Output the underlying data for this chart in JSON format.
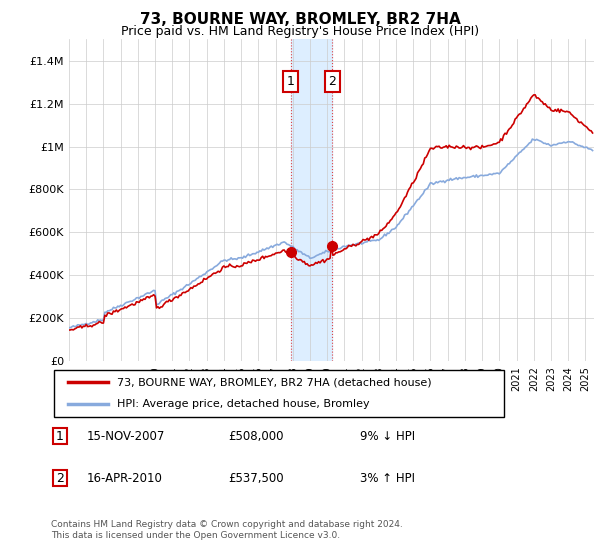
{
  "title": "73, BOURNE WAY, BROMLEY, BR2 7HA",
  "subtitle": "Price paid vs. HM Land Registry's House Price Index (HPI)",
  "legend_line1": "73, BOURNE WAY, BROMLEY, BR2 7HA (detached house)",
  "legend_line2": "HPI: Average price, detached house, Bromley",
  "transaction1_date": "15-NOV-2007",
  "transaction1_price": "£508,000",
  "transaction1_hpi": "9% ↓ HPI",
  "transaction2_date": "16-APR-2010",
  "transaction2_price": "£537,500",
  "transaction2_hpi": "3% ↑ HPI",
  "footer": "Contains HM Land Registry data © Crown copyright and database right 2024.\nThis data is licensed under the Open Government Licence v3.0.",
  "price_color": "#cc0000",
  "hpi_color": "#88aadd",
  "highlight_color": "#ddeeff",
  "ylim": [
    0,
    1500000
  ],
  "yticks": [
    0,
    200000,
    400000,
    600000,
    800000,
    1000000,
    1200000,
    1400000
  ],
  "ytick_labels": [
    "£0",
    "£200K",
    "£400K",
    "£600K",
    "£800K",
    "£1M",
    "£1.2M",
    "£1.4M"
  ],
  "transaction1_x": 2007.87,
  "transaction2_x": 2010.29,
  "transaction1_y": 508000,
  "transaction2_y": 537500,
  "xmin": 1995,
  "xmax": 2025.5
}
